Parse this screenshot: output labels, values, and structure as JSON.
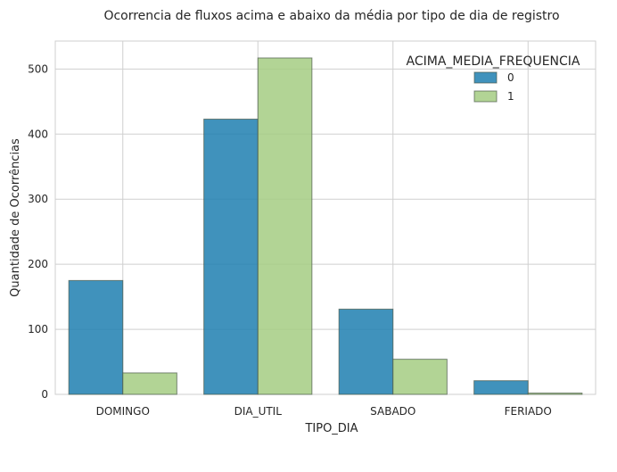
{
  "chart_data": {
    "type": "bar",
    "title": "Ocorrencia de fluxos acima e abaixo da média por tipo de dia de registro",
    "xlabel": "TIPO_DIA",
    "ylabel": "Quantidade de Ocorrências",
    "categories": [
      "DOMINGO",
      "DIA_UTIL",
      "SABADO",
      "FERIADO"
    ],
    "series": [
      {
        "name": "0",
        "values": [
          175,
          423,
          131,
          21
        ],
        "color": "#1f7fb0"
      },
      {
        "name": "1",
        "values": [
          33,
          517,
          54,
          2
        ],
        "color": "#a5cd82"
      }
    ],
    "ylim": [
      0,
      543
    ],
    "yticks": [
      0,
      100,
      200,
      300,
      400,
      500
    ],
    "legend_title": "ACIMA_MEDIA_FREQUENCIA",
    "legend_position": "top-right",
    "grid": true
  }
}
